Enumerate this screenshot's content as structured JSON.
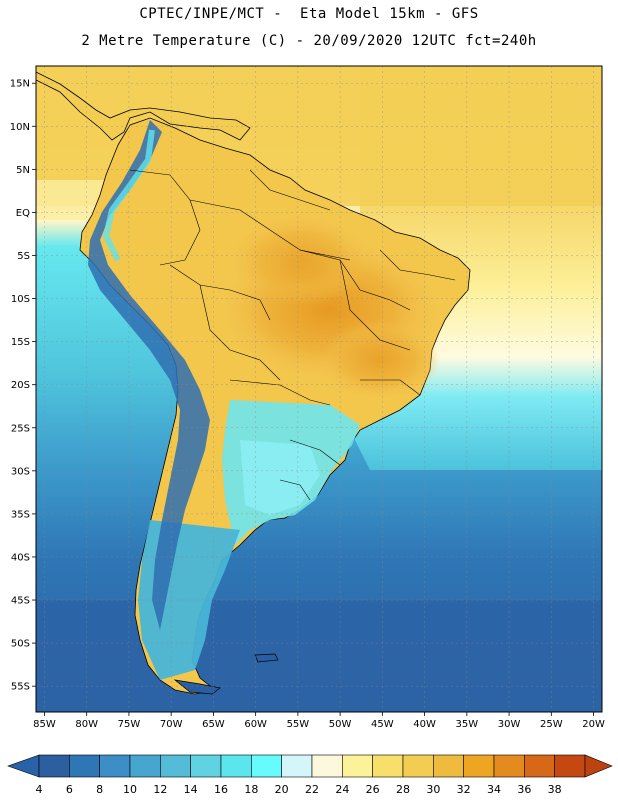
{
  "header": {
    "line1": "CPTEC/INPE/MCT -  Eta Model 15km - GFS",
    "line2": "2 Metre Temperature (C) - 20/09/2020 12UTC fct=240h"
  },
  "map": {
    "lon_range": [
      -86,
      -19
    ],
    "lat_range": [
      -58,
      17
    ],
    "lat_ticks": [
      "15N",
      "10N",
      "5N",
      "EQ",
      "5S",
      "10S",
      "15S",
      "20S",
      "25S",
      "30S",
      "35S",
      "40S",
      "45S",
      "50S",
      "55S"
    ],
    "lat_values": [
      15,
      10,
      5,
      0,
      -5,
      -10,
      -15,
      -20,
      -25,
      -30,
      -35,
      -40,
      -45,
      -50,
      -55
    ],
    "lon_ticks": [
      "85W",
      "80W",
      "75W",
      "70W",
      "65W",
      "60W",
      "55W",
      "50W",
      "45W",
      "40W",
      "35W",
      "30W",
      "25W",
      "20W"
    ],
    "lon_values": [
      -85,
      -80,
      -75,
      -70,
      -65,
      -60,
      -55,
      -50,
      -45,
      -40,
      -35,
      -30,
      -25,
      -20
    ]
  },
  "colorbar": {
    "labels": [
      "4",
      "6",
      "8",
      "10",
      "12",
      "14",
      "16",
      "18",
      "20",
      "22",
      "24",
      "26",
      "28",
      "30",
      "32",
      "34",
      "36",
      "38"
    ],
    "colors": [
      "#2c5fa0",
      "#2f76b5",
      "#3c8ec6",
      "#47a6cf",
      "#54bcd8",
      "#5fd3e2",
      "#5be6ee",
      "#66fbfc",
      "#d4f6fb",
      "#fdf8dc",
      "#fcf29a",
      "#f8df6c",
      "#f2cd51",
      "#efbb3f",
      "#eea521",
      "#e58a1f",
      "#d76818",
      "#c54812"
    ],
    "left_color": "#2a62a8",
    "right_color": "#bb430f"
  }
}
